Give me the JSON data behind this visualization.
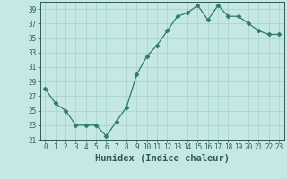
{
  "x": [
    0,
    1,
    2,
    3,
    4,
    5,
    6,
    7,
    8,
    9,
    10,
    11,
    12,
    13,
    14,
    15,
    16,
    17,
    18,
    19,
    20,
    21,
    22,
    23
  ],
  "y": [
    28,
    26,
    25,
    23,
    23,
    23,
    21.5,
    23.5,
    25.5,
    30,
    32.5,
    34,
    36,
    38,
    38.5,
    39.5,
    37.5,
    39.5,
    38,
    38,
    37,
    36,
    35.5,
    35.5
  ],
  "line_color": "#2d7a6e",
  "marker": "D",
  "marker_size": 2.5,
  "bg_color": "#c5e8e5",
  "grid_color": "#aad4ce",
  "xlabel": "Humidex (Indice chaleur)",
  "xlim": [
    -0.5,
    23.5
  ],
  "ylim": [
    21,
    40
  ],
  "yticks": [
    21,
    23,
    25,
    27,
    29,
    31,
    33,
    35,
    37,
    39
  ],
  "xticks": [
    0,
    1,
    2,
    3,
    4,
    5,
    6,
    7,
    8,
    9,
    10,
    11,
    12,
    13,
    14,
    15,
    16,
    17,
    18,
    19,
    20,
    21,
    22,
    23
  ],
  "tick_fontsize": 5.5,
  "xlabel_fontsize": 7.5,
  "label_color": "#2d5a54"
}
